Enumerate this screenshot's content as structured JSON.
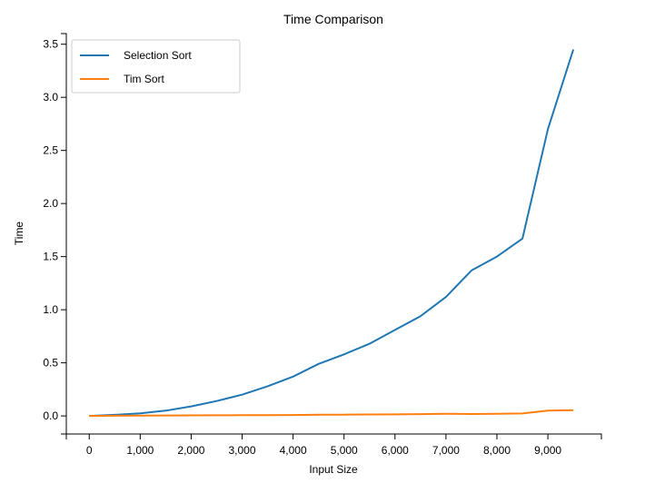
{
  "chart_data": {
    "type": "line",
    "title": "Time Comparison",
    "xlabel": "Input Size",
    "ylabel": "Time",
    "xlim": [
      -450,
      10050
    ],
    "ylim": [
      -0.17,
      3.6
    ],
    "x_ticks": [
      0,
      1000,
      2000,
      3000,
      4000,
      5000,
      6000,
      7000,
      8000,
      9000
    ],
    "x_tick_labels": [
      "0",
      "1,000",
      "2,000",
      "3,000",
      "4,000",
      "5,000",
      "6,000",
      "7,000",
      "8,000",
      "9,000"
    ],
    "y_ticks": [
      0,
      0.5,
      1,
      1.5,
      2,
      2.5,
      3,
      3.5
    ],
    "y_tick_labels": [
      "0.0",
      "0.5",
      "1.0",
      "1.5",
      "2.0",
      "2.5",
      "3.0",
      "3.5"
    ],
    "grid": false,
    "legend_position": "top-left",
    "x": [
      0,
      500,
      1000,
      1500,
      2000,
      2500,
      3000,
      3500,
      4000,
      4500,
      5000,
      5500,
      6000,
      6500,
      7000,
      7500,
      8000,
      8500,
      9000,
      9500
    ],
    "series": [
      {
        "name": "Selection Sort",
        "color": "#1f77b4",
        "values": [
          0.0,
          0.01,
          0.025,
          0.05,
          0.09,
          0.14,
          0.2,
          0.28,
          0.37,
          0.49,
          0.58,
          0.68,
          0.81,
          0.94,
          1.12,
          1.37,
          1.5,
          1.67,
          2.7,
          3.45
        ]
      },
      {
        "name": "Tim Sort",
        "color": "#ff7f0e",
        "values": [
          0.0,
          0.002,
          0.003,
          0.004,
          0.005,
          0.006,
          0.007,
          0.008,
          0.009,
          0.011,
          0.012,
          0.014,
          0.015,
          0.017,
          0.02,
          0.018,
          0.02,
          0.023,
          0.05,
          0.055
        ]
      }
    ]
  }
}
